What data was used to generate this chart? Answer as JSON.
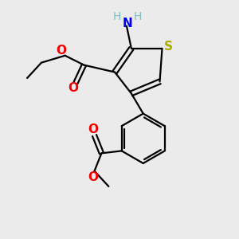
{
  "background_color": "#ebebeb",
  "atom_colors": {
    "C": "#000000",
    "H": "#7fbfbf",
    "N": "#0000ee",
    "O": "#ee0000",
    "S": "#aaaa00"
  },
  "bond_color": "#000000",
  "bond_width": 1.6,
  "figsize": [
    3.0,
    3.0
  ],
  "dpi": 100,
  "xlim": [
    0,
    10
  ],
  "ylim": [
    0,
    10
  ]
}
